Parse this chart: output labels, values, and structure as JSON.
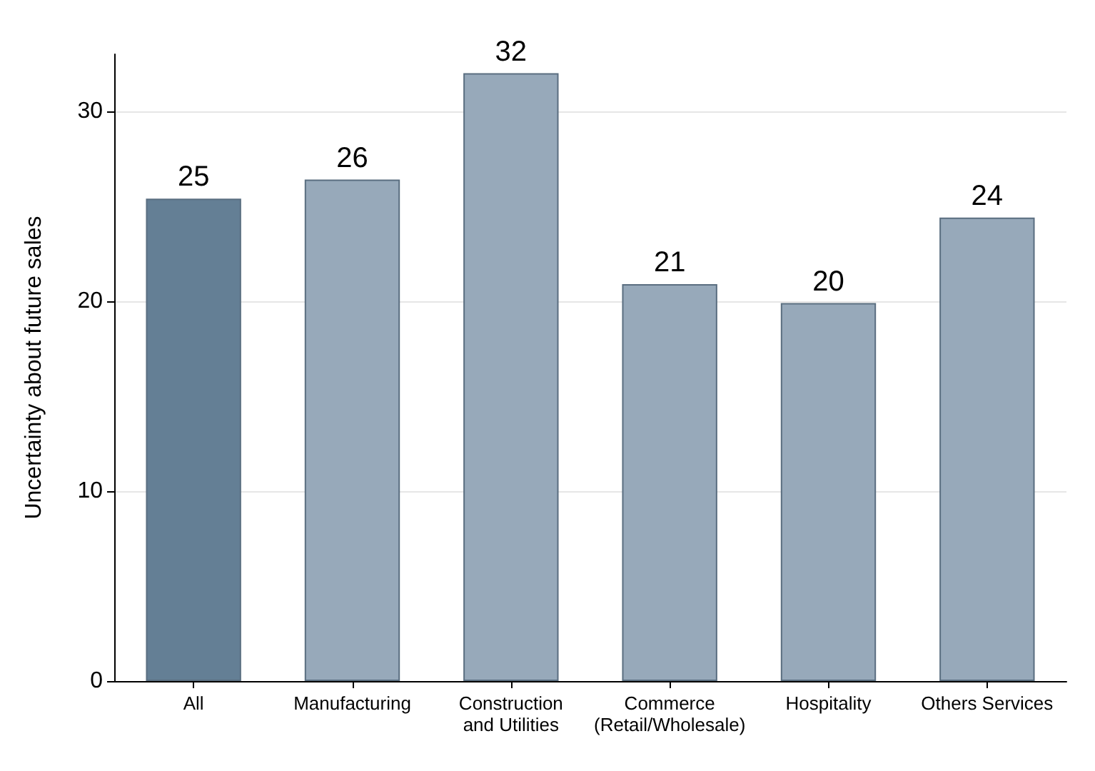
{
  "chart_data": {
    "type": "bar",
    "ylabel": "Uncertainty about future sales",
    "categories": [
      "All",
      "Manufacturing",
      "Construction\nand Utilities",
      "Commerce\n(Retail/Wholesale)",
      "Hospitality",
      "Others Services"
    ],
    "values": [
      25.4,
      26.4,
      32,
      20.9,
      19.9,
      24.4
    ],
    "value_labels": [
      "25",
      "26",
      "32",
      "21",
      "20",
      "24"
    ],
    "colors": [
      "#647f95",
      "#97a9ba",
      "#97a9ba",
      "#97a9ba",
      "#97a9ba",
      "#97a9ba"
    ],
    "ylim": [
      0,
      33
    ],
    "yticks": [
      0,
      10,
      20,
      30
    ],
    "grid": "y"
  }
}
